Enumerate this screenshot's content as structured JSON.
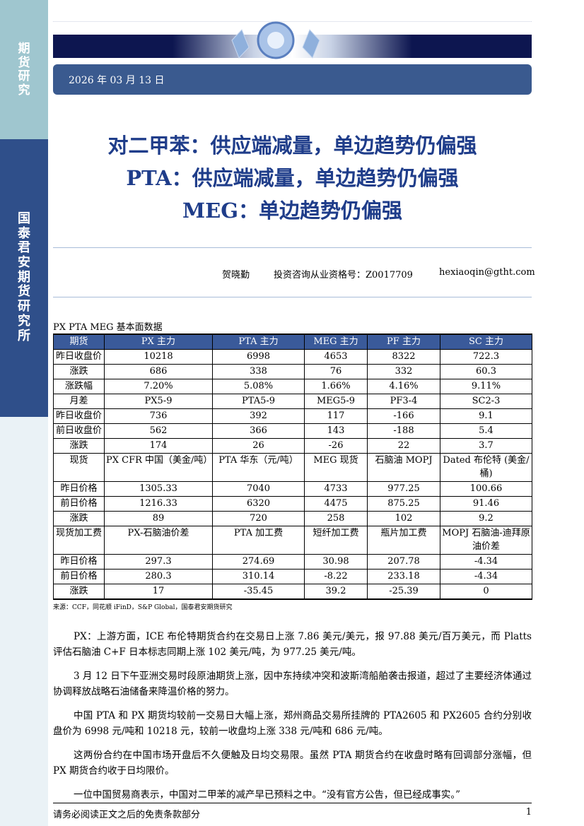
{
  "sidebar": {
    "top_label": [
      "期",
      "货",
      "研",
      "究"
    ],
    "org_label": [
      "国",
      "泰",
      "君",
      "安",
      "期",
      "货",
      "研",
      "究",
      "所"
    ]
  },
  "header": {
    "date": "2026 年 03 月 13 日"
  },
  "titles": [
    "对二甲苯：供应端减量，单边趋势仍偏强",
    "PTA：供应端减量，单边趋势仍偏强",
    "MEG：单边趋势仍偏强"
  ],
  "author": {
    "name": "贺晓勤",
    "qualification": "投资咨询从业资格号：Z0017709",
    "email": "hexiaoqin@gtht.com"
  },
  "table": {
    "caption": "PX PTA MEG 基本面数据",
    "header": [
      "期货",
      "PX 主力",
      "PTA 主力",
      "MEG 主力",
      "PF 主力",
      "SC 主力"
    ],
    "rows": [
      [
        "昨日收盘价",
        "10218",
        "6998",
        "4653",
        "8322",
        "722.3"
      ],
      [
        "涨跌",
        "686",
        "338",
        "76",
        "332",
        "60.3"
      ],
      [
        "涨跌幅",
        "7.20%",
        "5.08%",
        "1.66%",
        "4.16%",
        "9.11%"
      ],
      [
        "月差",
        "PX5-9",
        "PTA5-9",
        "MEG5-9",
        "PF3-4",
        "SC2-3"
      ],
      [
        "昨日收盘价",
        "736",
        "392",
        "117",
        "-166",
        "9.1"
      ],
      [
        "前日收盘价",
        "562",
        "366",
        "143",
        "-188",
        "5.4"
      ],
      [
        "涨跌",
        "174",
        "26",
        "-26",
        "22",
        "3.7"
      ],
      [
        "现货",
        "PX CFR 中国（美金/吨）",
        "PTA 华东（元/吨）",
        "MEG 现货",
        "石脑油 MOPJ",
        "Dated 布伦特 (美金/桶)"
      ],
      [
        "昨日价格",
        "1305.33",
        "7040",
        "4733",
        "977.25",
        "100.66"
      ],
      [
        "前日价格",
        "1216.33",
        "6320",
        "4475",
        "875.25",
        "91.46"
      ],
      [
        "涨跌",
        "89",
        "720",
        "258",
        "102",
        "9.2"
      ],
      [
        "现货加工费",
        "PX-石脑油价差",
        "PTA 加工费",
        "短纤加工费",
        "瓶片加工费",
        "MOPJ 石脑油-迪拜原油价差"
      ],
      [
        "昨日价格",
        "297.3",
        "274.69",
        "30.98",
        "207.78",
        "-4.34"
      ],
      [
        "前日价格",
        "280.3",
        "310.14",
        "-8.22",
        "233.18",
        "-4.34"
      ],
      [
        "涨跌",
        "17",
        "-35.45",
        "39.2",
        "-25.39",
        "0"
      ]
    ],
    "source": "来源：CCF，同花顺 iFinD，S&P Global，国泰君安期货研究"
  },
  "paragraphs": [
    "PX：上游方面，ICE 布伦特期货合约在交易日上涨 7.86 美元/美元，报 97.88 美元/百万美元，而 Platts 评估石脑油 C+F 日本标志同期上涨 102 美元/吨，为 977.25 美元/吨。",
    "3 月 12 日下午亚洲交易时段原油期货上涨，因中东持续冲突和波斯湾船舶袭击报道，超过了主要经济体通过协调释放战略石油储备来降温价格的努力。",
    "中国 PTA 和 PX 期货均较前一交易日大幅上涨，郑州商品交易所挂牌的 PTA2605 和 PX2605 合约分别收盘价为 6998 元/吨和 10218 元，较前一收盘均上涨 338 元/吨和 686 元/吨。",
    "这两份合约在中国市场开盘后不久便触及日均交易限。虽然 PTA 期货合约在收盘时略有回调部分涨幅，但 PX 期货合约收于日均限价。",
    "一位中国贸易商表示，中国对二甲苯的减产早已预料之中。“没有官方公告，但已经成事实。”"
  ],
  "footer": {
    "disclaimer": "请务必阅读正文之后的免责条款部分",
    "page": "1"
  },
  "colors": {
    "title": "#1f3d8a",
    "banner": "#0d1650",
    "date_bar": "#3a5a8f",
    "table_header": "#3a5a9a",
    "sidebar_org": "#2f4f8a",
    "sidebar_top": "#9fc6cf"
  }
}
